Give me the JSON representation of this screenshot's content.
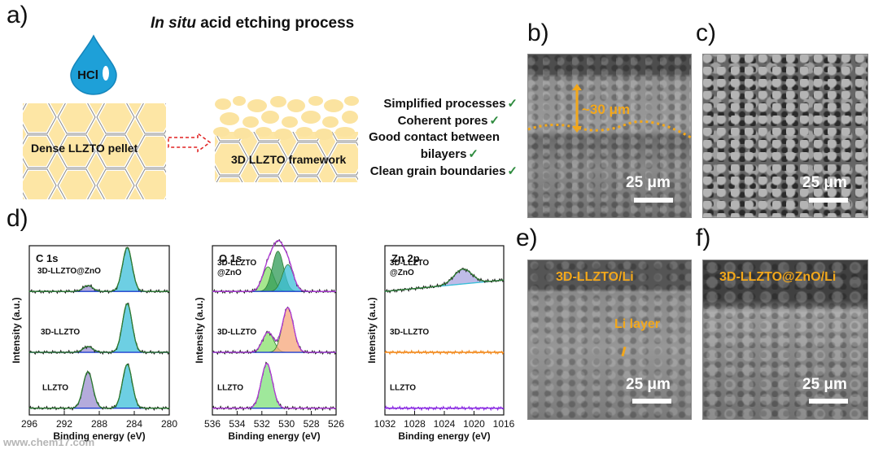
{
  "panel_a": {
    "label": "a)",
    "title_italic": "In situ",
    "title_rest": " acid etching process",
    "droplet_text": "HCl",
    "left_block": "Dense LLZTO pellet",
    "right_block": "3D LLZTO framework",
    "features": [
      {
        "text": "Simplified processes",
        "check": "✓"
      },
      {
        "text": "Coherent pores",
        "check": "✓"
      },
      {
        "text": "Good contact between",
        "check": ""
      },
      {
        "text": "bilayers",
        "check": "✓"
      },
      {
        "text": "Clean grain boundaries",
        "check": "✓"
      }
    ],
    "colors": {
      "block": "#fde6a5",
      "blob": "#fbe3a0",
      "droplet": "#1ea0d8",
      "arrow": "#e02020",
      "check": "#2e8b3e"
    }
  },
  "panel_b": {
    "label": "b)",
    "thickness": "~30 μm",
    "scale": "25 μm"
  },
  "panel_c": {
    "label": "c)",
    "scale": "25 μm"
  },
  "panel_d": {
    "label": "d)"
  },
  "panel_e": {
    "label": "e)",
    "title": "3D-LLZTO/Li",
    "annotation": "Li layer",
    "scale": "25 μm"
  },
  "panel_f": {
    "label": "f)",
    "title": "3D-LLZTO@ZnO/Li",
    "scale": "25 μm"
  },
  "watermark": "www.chem17.com",
  "chart_data": [
    {
      "type": "line",
      "title": "C 1s",
      "xlabel": "Binding energy (eV)",
      "ylabel": "Intensity (a.u.)",
      "xlim": [
        296,
        280
      ],
      "xticks": [
        296,
        292,
        288,
        284,
        280
      ],
      "series": [
        {
          "name": "3D-LLZTO@ZnO",
          "peaks": [
            {
              "center": 284.8,
              "height": 0.9,
              "color": "#3cbfd9"
            },
            {
              "center": 289.3,
              "height": 0.12,
              "color": "#9b8fd0"
            }
          ]
        },
        {
          "name": "3D-LLZTO",
          "peaks": [
            {
              "center": 284.8,
              "height": 1.0,
              "color": "#3cbfd9"
            },
            {
              "center": 289.3,
              "height": 0.12,
              "color": "#9b8fd0"
            }
          ]
        },
        {
          "name": "LLZTO",
          "peaks": [
            {
              "center": 284.8,
              "height": 0.9,
              "color": "#3cbfd9"
            },
            {
              "center": 289.3,
              "height": 0.75,
              "color": "#9b8fd0"
            }
          ]
        }
      ]
    },
    {
      "type": "line",
      "title": "O 1s",
      "xlabel": "Binding energy (eV)",
      "ylabel": "Intensity (a.u.)",
      "xlim": [
        536,
        526
      ],
      "xticks": [
        536,
        534,
        532,
        530,
        528,
        526
      ],
      "series": [
        {
          "name": "3D-LLZTO @ZnO",
          "label_lines": [
            "3D-LLZTO",
            "@ZnO"
          ],
          "peaks": [
            {
              "center": 531.5,
              "height": 0.55,
              "color": "#88e06a"
            },
            {
              "center": 530.7,
              "height": 0.9,
              "color": "#2e9a55"
            },
            {
              "center": 529.9,
              "height": 0.6,
              "color": "#3cbfd9"
            }
          ]
        },
        {
          "name": "3D-LLZTO",
          "peaks": [
            {
              "center": 531.5,
              "height": 0.45,
              "color": "#88e06a"
            },
            {
              "center": 529.9,
              "height": 1.0,
              "color": "#f5a57a"
            }
          ]
        },
        {
          "name": "LLZTO",
          "peaks": [
            {
              "center": 531.6,
              "height": 1.0,
              "color": "#7fe07a"
            }
          ]
        }
      ]
    },
    {
      "type": "line",
      "title": "Zn 2p",
      "xlabel": "Binding energy (eV)",
      "ylabel": "Intensity (a.u.)",
      "xlim": [
        1032,
        1016
      ],
      "xticks": [
        1032,
        1028,
        1024,
        1020,
        1016
      ],
      "series": [
        {
          "name": "3D-LLZTO @ZnO",
          "label_lines": [
            "3D-LLZTO",
            "@ZnO"
          ],
          "peaks": [
            {
              "center": 1021.5,
              "height": 0.7,
              "color": "#a9a5e0"
            }
          ]
        },
        {
          "name": "3D-LLZTO",
          "peaks": []
        },
        {
          "name": "LLZTO",
          "peaks": []
        }
      ]
    }
  ]
}
